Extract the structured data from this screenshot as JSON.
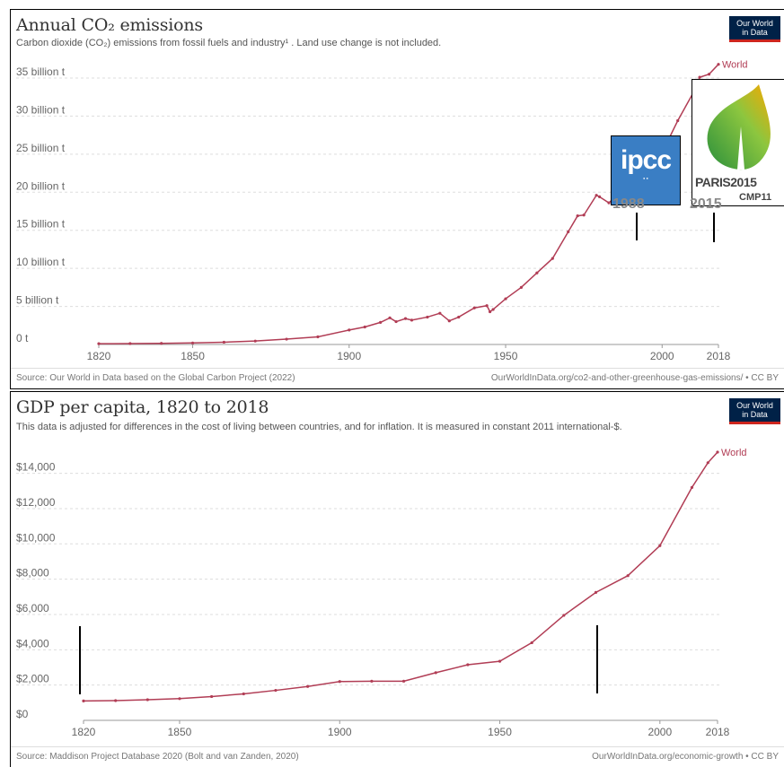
{
  "panel1": {
    "title": "Annual CO₂ emissions",
    "subtitle": "Carbon dioxide (CO₂) emissions from fossil fuels and industry¹ . Land use change is not included.",
    "logo": [
      "Our World",
      "in Data"
    ],
    "source": "Source: Our World in Data based on the Global Carbon Project (2022)",
    "url": "OurWorldInData.org/co2-and-other-greenhouse-gas-emissions/ • CC BY",
    "ipcc_logo_text": "ipcc",
    "paris_logo_text": "PARIS2015",
    "paris_logo_sub": "CMP11",
    "year_labels": [
      "1988",
      "2015"
    ]
  },
  "panel2": {
    "title": "GDP per capita, 1820 to 2018",
    "subtitle": "This data is adjusted for differences in the cost of living between countries, and for inflation. It is measured in constant 2011 international-$.",
    "logo": [
      "Our World",
      "in Data"
    ],
    "source": "Source: Maddison Project Database 2020 (Bolt and van Zanden, 2020)",
    "url": "OurWorldInData.org/economic-growth • CC BY"
  },
  "colors": {
    "line": "#b13d55",
    "grid": "#dddddd",
    "axis": "#666666"
  },
  "chart_data": [
    {
      "type": "line",
      "title": "Annual CO₂ emissions",
      "xlim": [
        1820,
        2018
      ],
      "ylim": [
        0,
        37
      ],
      "xticks": [
        "1820",
        "1850",
        "1900",
        "1950",
        "2000",
        "2018"
      ],
      "yticks": [
        "0 t",
        "5 billion t",
        "10 billion t",
        "15 billion t",
        "20 billion t",
        "25 billion t",
        "30 billion t",
        "35 billion t"
      ],
      "ytick_values": [
        0,
        5,
        10,
        15,
        20,
        25,
        30,
        35
      ],
      "grid": true,
      "series": [
        {
          "name": "World",
          "x": [
            1820,
            1830,
            1840,
            1850,
            1860,
            1870,
            1880,
            1890,
            1900,
            1905,
            1910,
            1913,
            1915,
            1918,
            1920,
            1925,
            1929,
            1932,
            1935,
            1940,
            1944,
            1945,
            1946,
            1950,
            1955,
            1960,
            1965,
            1970,
            1973,
            1975,
            1979,
            1980,
            1983,
            1985,
            1990,
            1995,
            2000,
            2005,
            2010,
            2012,
            2015,
            2018
          ],
          "y": [
            0.1,
            0.12,
            0.15,
            0.2,
            0.3,
            0.45,
            0.7,
            1.0,
            1.9,
            2.3,
            2.9,
            3.5,
            3.0,
            3.4,
            3.2,
            3.6,
            4.1,
            3.1,
            3.6,
            4.8,
            5.1,
            4.3,
            4.6,
            6.0,
            7.5,
            9.4,
            11.3,
            14.8,
            16.9,
            17.0,
            19.6,
            19.4,
            18.6,
            19.4,
            22.7,
            23.4,
            25.2,
            29.4,
            33.1,
            35.1,
            35.5,
            36.8
          ]
        }
      ]
    },
    {
      "type": "line",
      "title": "GDP per capita, 1820 to 2018",
      "xlim": [
        1820,
        2018
      ],
      "ylim": [
        0,
        15200
      ],
      "xticks": [
        "1820",
        "1850",
        "1900",
        "1950",
        "2000",
        "2018"
      ],
      "yticks": [
        "$0",
        "$2,000",
        "$4,000",
        "$6,000",
        "$8,000",
        "$10,000",
        "$12,000",
        "$14,000"
      ],
      "ytick_values": [
        0,
        2000,
        4000,
        6000,
        8000,
        10000,
        12000,
        14000
      ],
      "grid": true,
      "series": [
        {
          "name": "World",
          "x": [
            1820,
            1830,
            1840,
            1850,
            1860,
            1870,
            1880,
            1890,
            1900,
            1910,
            1920,
            1930,
            1940,
            1950,
            1960,
            1970,
            1980,
            1990,
            2000,
            2010,
            2015,
            2018
          ],
          "y": [
            1100,
            1120,
            1170,
            1230,
            1350,
            1500,
            1700,
            1920,
            2200,
            2220,
            2220,
            2700,
            3150,
            3350,
            4400,
            5950,
            7250,
            8200,
            9900,
            13200,
            14600,
            15200
          ]
        }
      ]
    }
  ]
}
